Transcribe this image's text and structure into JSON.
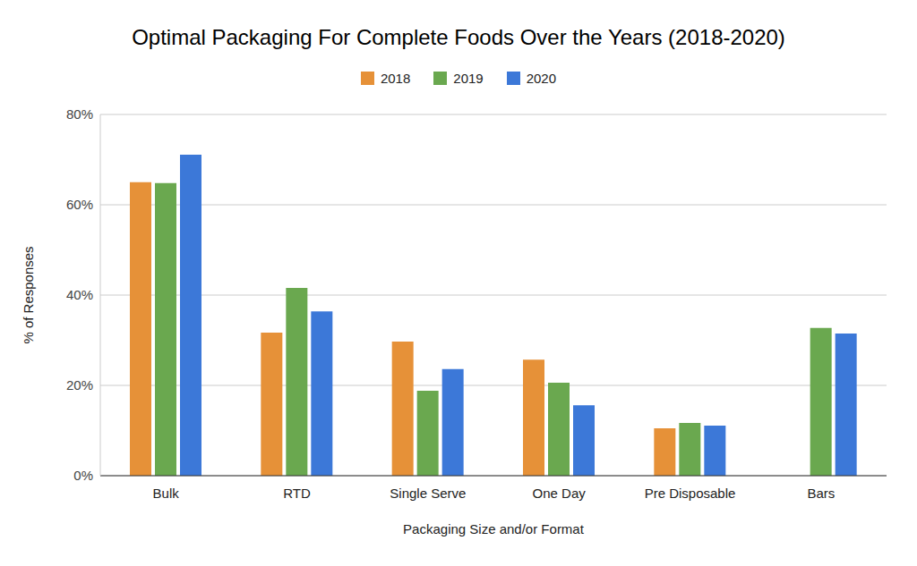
{
  "chart_data": {
    "type": "bar",
    "title": "Optimal Packaging For Complete Foods Over the Years (2018-2020)",
    "x_label": "Packaging Size and/or Format",
    "y_label": "% of Responses",
    "categories": [
      "Bulk",
      "RTD",
      "Single Serve",
      "One Day",
      "Pre Disposable",
      "Bars"
    ],
    "series": [
      {
        "name": "2018",
        "color": "#e69138",
        "values": [
          65,
          31.7,
          29.7,
          25.7,
          10.5,
          null
        ]
      },
      {
        "name": "2019",
        "color": "#6aa84f",
        "values": [
          64.8,
          41.6,
          18.8,
          20.6,
          11.7,
          32.7
        ]
      },
      {
        "name": "2020",
        "color": "#3c78d8",
        "values": [
          71.1,
          36.4,
          23.6,
          15.6,
          11.1,
          31.5
        ]
      }
    ],
    "ylim": [
      0,
      80
    ],
    "yticks": [
      {
        "value": 0,
        "label": "0%"
      },
      {
        "value": 20,
        "label": "20%"
      },
      {
        "value": 40,
        "label": "40%"
      },
      {
        "value": 60,
        "label": "60%"
      },
      {
        "value": 80,
        "label": "80%"
      }
    ],
    "grid": true,
    "legend": "top"
  }
}
